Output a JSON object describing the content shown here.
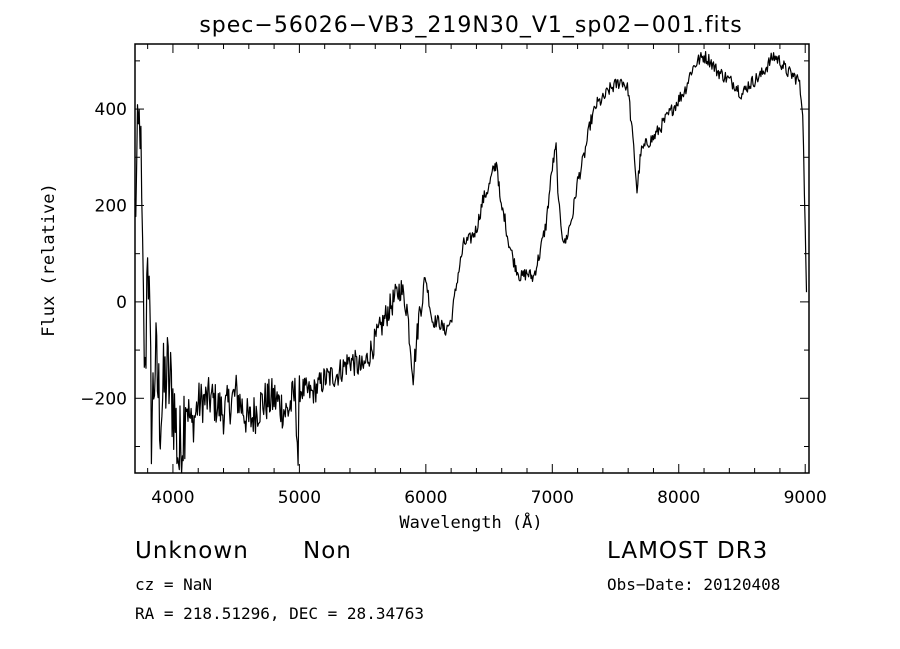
{
  "chart_data": {
    "type": "line",
    "title": "spec−56026−VB3_219N30_V1_sp02−001.fits",
    "xlabel": "Wavelength (Å)",
    "ylabel": "Flux (relative)",
    "xlim": [
      3700,
      9030
    ],
    "ylim": [
      -355,
      535
    ],
    "xticks": [
      4000,
      5000,
      6000,
      7000,
      8000,
      9000
    ],
    "xtick_labels": [
      "4000",
      "5000",
      "6000",
      "7000",
      "8000",
      "9000"
    ],
    "yticks": [
      -200,
      0,
      200,
      400
    ],
    "ytick_labels": [
      "−200",
      "0",
      "200",
      "400"
    ],
    "grid": false,
    "series": [
      {
        "name": "flux",
        "x": [
          3700,
          3720,
          3740,
          3760,
          3780,
          3800,
          3830,
          3860,
          3900,
          3950,
          4000,
          4050,
          4100,
          4150,
          4200,
          4300,
          4400,
          4500,
          4600,
          4700,
          4800,
          4900,
          4970,
          4990,
          5000,
          5100,
          5200,
          5300,
          5400,
          5500,
          5600,
          5700,
          5800,
          5850,
          5900,
          5950,
          6000,
          6050,
          6100,
          6150,
          6200,
          6250,
          6300,
          6350,
          6400,
          6450,
          6500,
          6530,
          6563,
          6590,
          6620,
          6650,
          6700,
          6750,
          6800,
          6850,
          6900,
          6950,
          7000,
          7030,
          7050,
          7080,
          7100,
          7130,
          7160,
          7200,
          7250,
          7300,
          7350,
          7400,
          7450,
          7500,
          7550,
          7600,
          7650,
          7670,
          7700,
          7750,
          7800,
          7850,
          7900,
          7950,
          8000,
          8050,
          8100,
          8150,
          8200,
          8250,
          8300,
          8350,
          8400,
          8450,
          8500,
          8550,
          8600,
          8650,
          8700,
          8750,
          8800,
          8850,
          8900,
          8950,
          8980,
          9000,
          9010
        ],
        "y": [
          180,
          300,
          390,
          60,
          -180,
          150,
          -250,
          -120,
          -230,
          -150,
          -200,
          -330,
          -200,
          -260,
          -210,
          -200,
          -230,
          -190,
          -250,
          -210,
          -200,
          -230,
          -190,
          -330,
          -180,
          -190,
          -160,
          -150,
          -120,
          -140,
          -80,
          -20,
          30,
          -10,
          -150,
          -20,
          50,
          -40,
          -40,
          -60,
          -40,
          50,
          120,
          130,
          150,
          210,
          240,
          270,
          290,
          200,
          180,
          130,
          80,
          50,
          60,
          50,
          100,
          160,
          280,
          320,
          200,
          140,
          120,
          150,
          180,
          250,
          300,
          370,
          410,
          420,
          440,
          450,
          460,
          440,
          300,
          230,
          310,
          330,
          340,
          360,
          380,
          400,
          420,
          440,
          480,
          500,
          510,
          500,
          480,
          470,
          460,
          450,
          430,
          450,
          460,
          470,
          490,
          510,
          500,
          480,
          470,
          460,
          400,
          150,
          20
        ]
      }
    ]
  },
  "labels": {
    "object_class": "Unknown",
    "object_subclass": "Non",
    "survey": "LAMOST DR3",
    "redshift_line": "cz = NaN",
    "obs_date_line": "Obs−Date: 20120408",
    "coords_line": "RA = 218.51296, DEC =  28.34763"
  }
}
